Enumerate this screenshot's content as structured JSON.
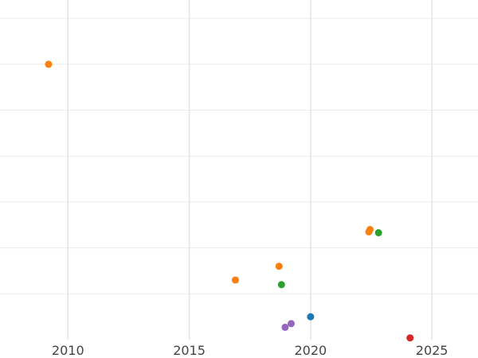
{
  "chart_data": {
    "type": "scatter",
    "title": "",
    "xlabel": "",
    "ylabel": "",
    "xlim": [
      2007.2,
      2026.9
    ],
    "ylim": [
      0,
      7.4
    ],
    "x_ticks": [
      2010,
      2015,
      2020,
      2025
    ],
    "x_tick_labels": [
      "2010",
      "2015",
      "2020",
      "2025"
    ],
    "y_gridlines": [
      1,
      2,
      3,
      4,
      5,
      6,
      7
    ],
    "y_tick_labels_visible": false,
    "grid": true,
    "legend": "none",
    "series": [
      {
        "color": "#ff7f0e",
        "points": [
          {
            "x": 2009.2,
            "y": 6.0
          },
          {
            "x": 2016.9,
            "y": 1.3
          },
          {
            "x": 2018.7,
            "y": 1.6
          },
          {
            "x": 2022.4,
            "y": 2.35
          },
          {
            "x": 2022.45,
            "y": 2.4
          }
        ]
      },
      {
        "color": "#2ca02c",
        "points": [
          {
            "x": 2018.8,
            "y": 1.2
          },
          {
            "x": 2022.8,
            "y": 2.33
          }
        ]
      },
      {
        "color": "#1f77b4",
        "points": [
          {
            "x": 2020.0,
            "y": 0.5
          }
        ]
      },
      {
        "color": "#9467bd",
        "points": [
          {
            "x": 2018.95,
            "y": 0.27
          },
          {
            "x": 2019.2,
            "y": 0.35
          }
        ]
      },
      {
        "color": "#d62728",
        "points": [
          {
            "x": 2024.1,
            "y": 0.04
          }
        ]
      }
    ]
  }
}
